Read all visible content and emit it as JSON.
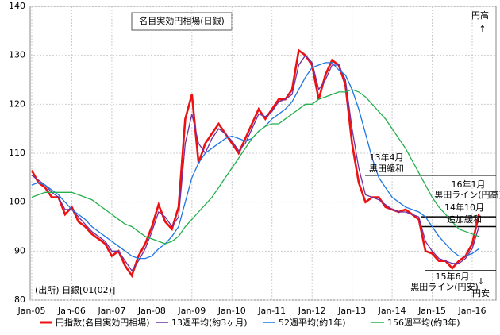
{
  "chart_data": {
    "type": "line",
    "title": "名目実効円相場(日銀)",
    "categories": [
      "Jan-05",
      null,
      null,
      null,
      null,
      null,
      "Jan-06",
      null,
      null,
      null,
      null,
      null,
      "Jan-07",
      null,
      null,
      null,
      null,
      null,
      "Jan-08",
      null,
      null,
      null,
      null,
      null,
      "Jan-09",
      null,
      null,
      null,
      null,
      null,
      "Jan-10",
      null,
      null,
      null,
      null,
      null,
      "Jan-11",
      null,
      null,
      null,
      null,
      null,
      "Jan-12",
      null,
      null,
      null,
      null,
      null,
      "Jan-13",
      null,
      null,
      null,
      null,
      null,
      "Jan-14",
      null,
      null,
      null,
      null,
      null,
      "Jan-15",
      null,
      null,
      null,
      null,
      null,
      "Jan-16",
      null
    ],
    "series": [
      {
        "name": "円指数(名目実効円相場)",
        "color": "#ee1111",
        "values": [
          106.5,
          104,
          103,
          101,
          101,
          97.5,
          99,
          96,
          95,
          93.5,
          92.5,
          91.5,
          89,
          90,
          87,
          85,
          89,
          91.5,
          95,
          99.5,
          96,
          94.5,
          99,
          117,
          122,
          108,
          112,
          114,
          116,
          114,
          112,
          110,
          113,
          116,
          119,
          117,
          119,
          121,
          121,
          123,
          131,
          130,
          128,
          121,
          126,
          129,
          128,
          124,
          112,
          104,
          100,
          101,
          101,
          99,
          98.5,
          98,
          98.5,
          97.5,
          96.5,
          90,
          89.5,
          88,
          88,
          86.5,
          88,
          89,
          91.5,
          97.5
        ]
      },
      {
        "name": "13週平均(約3ヶ月)",
        "color": "#7030a0",
        "values": [
          105.5,
          104.5,
          103.5,
          102,
          101,
          98.5,
          98.5,
          97,
          95.5,
          94,
          93,
          92,
          90,
          90,
          88,
          86,
          88,
          90.5,
          94,
          98,
          97,
          95,
          97,
          112,
          118,
          112,
          110,
          113,
          115,
          114,
          112.5,
          110.5,
          112,
          115,
          118,
          117.5,
          118.5,
          120.5,
          121,
          122,
          128,
          130,
          128.5,
          123,
          125,
          128,
          128,
          125,
          115,
          107,
          101.5,
          101,
          100.5,
          99.5,
          98.5,
          98,
          98,
          97.5,
          97,
          92,
          90,
          88.5,
          88,
          87.5,
          87.5,
          88.5,
          90.5,
          95
        ]
      },
      {
        "name": "52週平均(約1年)",
        "color": "#1f77e4",
        "values": [
          103.5,
          104,
          103.5,
          102.5,
          101.5,
          100,
          98.5,
          97.5,
          96.5,
          95,
          94,
          93,
          92,
          91,
          90,
          89,
          88.5,
          88.5,
          89,
          90.5,
          91.5,
          93,
          95,
          100,
          105,
          108,
          110,
          111,
          112,
          113,
          113.5,
          113,
          112.5,
          113,
          114.5,
          115.5,
          117,
          118,
          119,
          120.5,
          123,
          125.5,
          127.5,
          128,
          128.5,
          128.5,
          127,
          126,
          123,
          119,
          114,
          109,
          105,
          103,
          101,
          100,
          99,
          98.5,
          98,
          97,
          95,
          93,
          91.5,
          90,
          89,
          89,
          89.5,
          90.5
        ]
      },
      {
        "name": "156週平均(約3年)",
        "color": "#22b04a",
        "values": [
          101,
          101.5,
          102,
          102,
          102,
          102,
          102,
          101.5,
          101,
          100.5,
          99.5,
          98.5,
          97.5,
          96.5,
          95.5,
          95,
          94,
          93,
          92.5,
          92,
          91.5,
          92,
          93,
          95,
          96.5,
          98,
          99.5,
          101,
          103,
          105,
          107,
          109,
          111,
          113,
          114.5,
          115.5,
          116,
          116,
          117,
          118,
          119,
          120,
          120,
          121,
          121.5,
          122,
          122.5,
          122.5,
          123,
          122.5,
          121.5,
          120,
          118.5,
          117,
          115,
          113,
          111,
          108.5,
          106,
          103.5,
          101,
          99,
          97.5,
          96,
          94.5,
          94,
          93.5,
          93
        ]
      }
    ],
    "ylim": [
      80,
      140
    ],
    "yticks": [
      80,
      90,
      100,
      110,
      120,
      130,
      140
    ],
    "grid": true,
    "hlines": [
      105.5,
      97,
      95,
      86
    ],
    "annotations": [
      "13年4月",
      "黒田緩和",
      "16年1月",
      "黒田ライン(円高)",
      "14年10月",
      "追加緩和",
      "15年6月",
      "黒田ライン(円安)",
      "円高",
      "↑",
      "↓",
      "円安",
      "(出所) 日銀[01(02)]"
    ]
  }
}
